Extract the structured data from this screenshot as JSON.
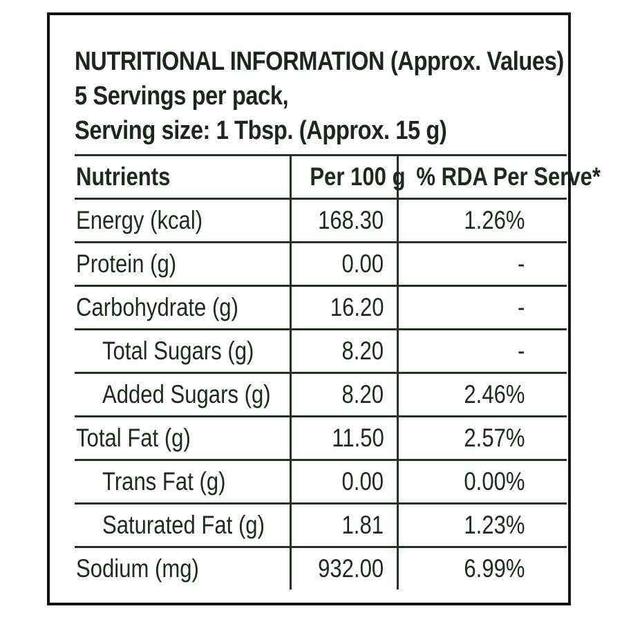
{
  "header": {
    "title": "NUTRITIONAL INFORMATION",
    "title_suffix": "(Approx. Values)",
    "servings": "5 Servings per pack,",
    "serving_size": "Serving size: 1 Tbsp. (Approx. 15 g)"
  },
  "table": {
    "columns": {
      "nutrients": "Nutrients",
      "per_100g": "Per 100 g",
      "rda": "% RDA Per Serve*"
    },
    "rows": [
      {
        "name": "Energy (kcal)",
        "per_100g": "168.30",
        "rda": "1.26%"
      },
      {
        "name": "Protein (g)",
        "per_100g": "0.00",
        "rda": "-"
      },
      {
        "name": "Carbohydrate (g)",
        "per_100g": "16.20",
        "rda": "-"
      },
      {
        "name": "Total Sugars (g)",
        "per_100g": "8.20",
        "rda": "-"
      },
      {
        "name": "Added Sugars (g)",
        "per_100g": "8.20",
        "rda": "2.46%"
      },
      {
        "name": "Total Fat (g)",
        "per_100g": "11.50",
        "rda": "2.57%"
      },
      {
        "name": "Trans Fat (g)",
        "per_100g": "0.00",
        "rda": "0.00%"
      },
      {
        "name": "Saturated Fat (g)",
        "per_100g": "1.81",
        "rda": "1.23%"
      },
      {
        "name": "Sodium (mg)",
        "per_100g": "932.00",
        "rda": "6.99%"
      }
    ]
  }
}
